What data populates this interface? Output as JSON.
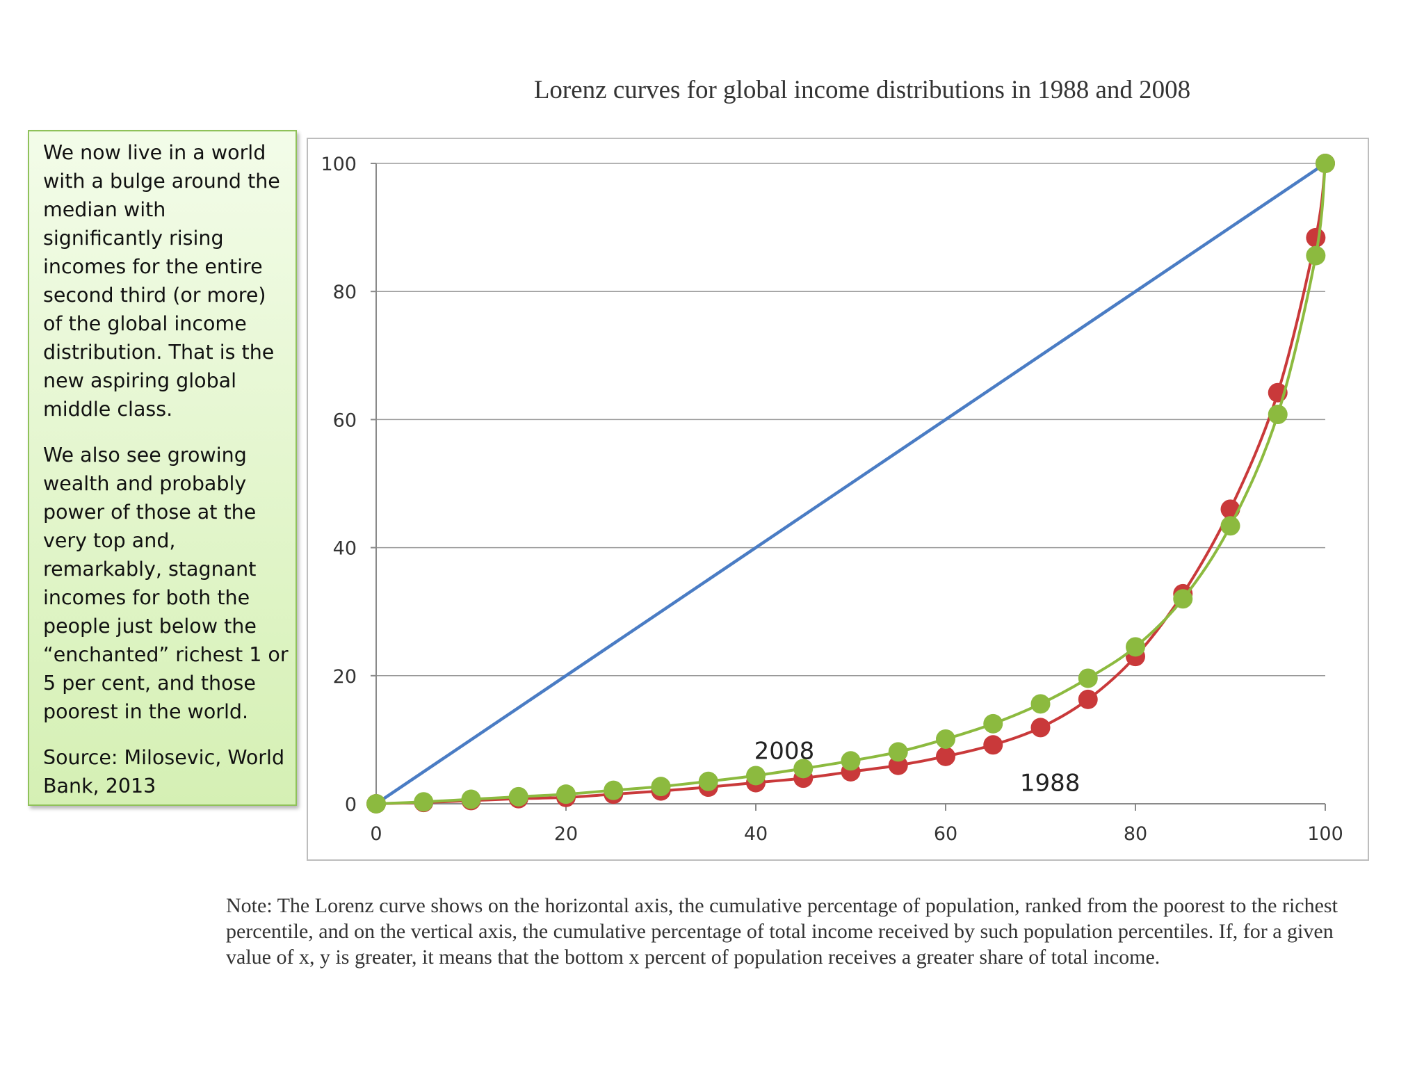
{
  "callout": {
    "paragraph1": "We now live in a world with a bulge around the median with significantly rising incomes for the entire second third (or more) of the global income distribution. That is the new aspiring global middle class.",
    "paragraph2": "We also see growing wealth and probably power of those at the very top and, remarkably, stagnant incomes for both the people just below the “enchanted” richest 1 or 5 per cent, and those poorest in the world.",
    "source": "Source: Milosevic, World Bank, 2013"
  },
  "note": "Note: The Lorenz curve shows on the horizontal axis, the cumulative percentage of population, ranked from the poorest to the richest percentile, and on the vertical axis, the cumulative percentage of total income received by such population percentiles. If, for a given value of x, y is greater, it means that the bottom x percent of population receives a greater share of total income.",
  "chart_data": {
    "type": "line",
    "title": "Lorenz curves for global income distributions in 1988 and 2008",
    "xlabel": "",
    "ylabel": "",
    "xlim": [
      0,
      100
    ],
    "ylim": [
      0,
      100
    ],
    "x_ticks": [
      0,
      20,
      40,
      60,
      80,
      100
    ],
    "y_ticks": [
      0,
      20,
      40,
      60,
      80,
      100
    ],
    "grid": "horizontal",
    "legend": "none",
    "annotations": [
      {
        "text": "2008",
        "x": 43,
        "y": 7
      },
      {
        "text": "1988",
        "x": 71,
        "y": 2
      }
    ],
    "series": [
      {
        "key": "equality",
        "color": "#4a7cc4",
        "markers": false,
        "x": [
          0,
          100
        ],
        "y": [
          0,
          100
        ]
      },
      {
        "key": "1988",
        "color": "#c9393a",
        "markers": true,
        "x": [
          0,
          5,
          10,
          15,
          20,
          25,
          30,
          35,
          40,
          45,
          50,
          55,
          60,
          65,
          70,
          75,
          80,
          85,
          90,
          95,
          99,
          100
        ],
        "y": [
          0,
          0.2,
          0.5,
          0.8,
          1.0,
          1.5,
          2.0,
          2.6,
          3.3,
          4.0,
          5.0,
          6.0,
          7.4,
          9.2,
          11.9,
          16.3,
          23.0,
          32.8,
          46.0,
          64.2,
          88.4,
          100
        ]
      },
      {
        "key": "2008",
        "color": "#8cba3f",
        "markers": true,
        "x": [
          0,
          5,
          10,
          15,
          20,
          25,
          30,
          35,
          40,
          45,
          50,
          55,
          60,
          65,
          70,
          75,
          80,
          85,
          90,
          95,
          99,
          100
        ],
        "y": [
          0,
          0.3,
          0.7,
          1.1,
          1.5,
          2.1,
          2.7,
          3.5,
          4.4,
          5.5,
          6.7,
          8.1,
          10.1,
          12.5,
          15.6,
          19.6,
          24.5,
          32.0,
          43.4,
          60.8,
          85.6,
          100
        ]
      }
    ]
  }
}
